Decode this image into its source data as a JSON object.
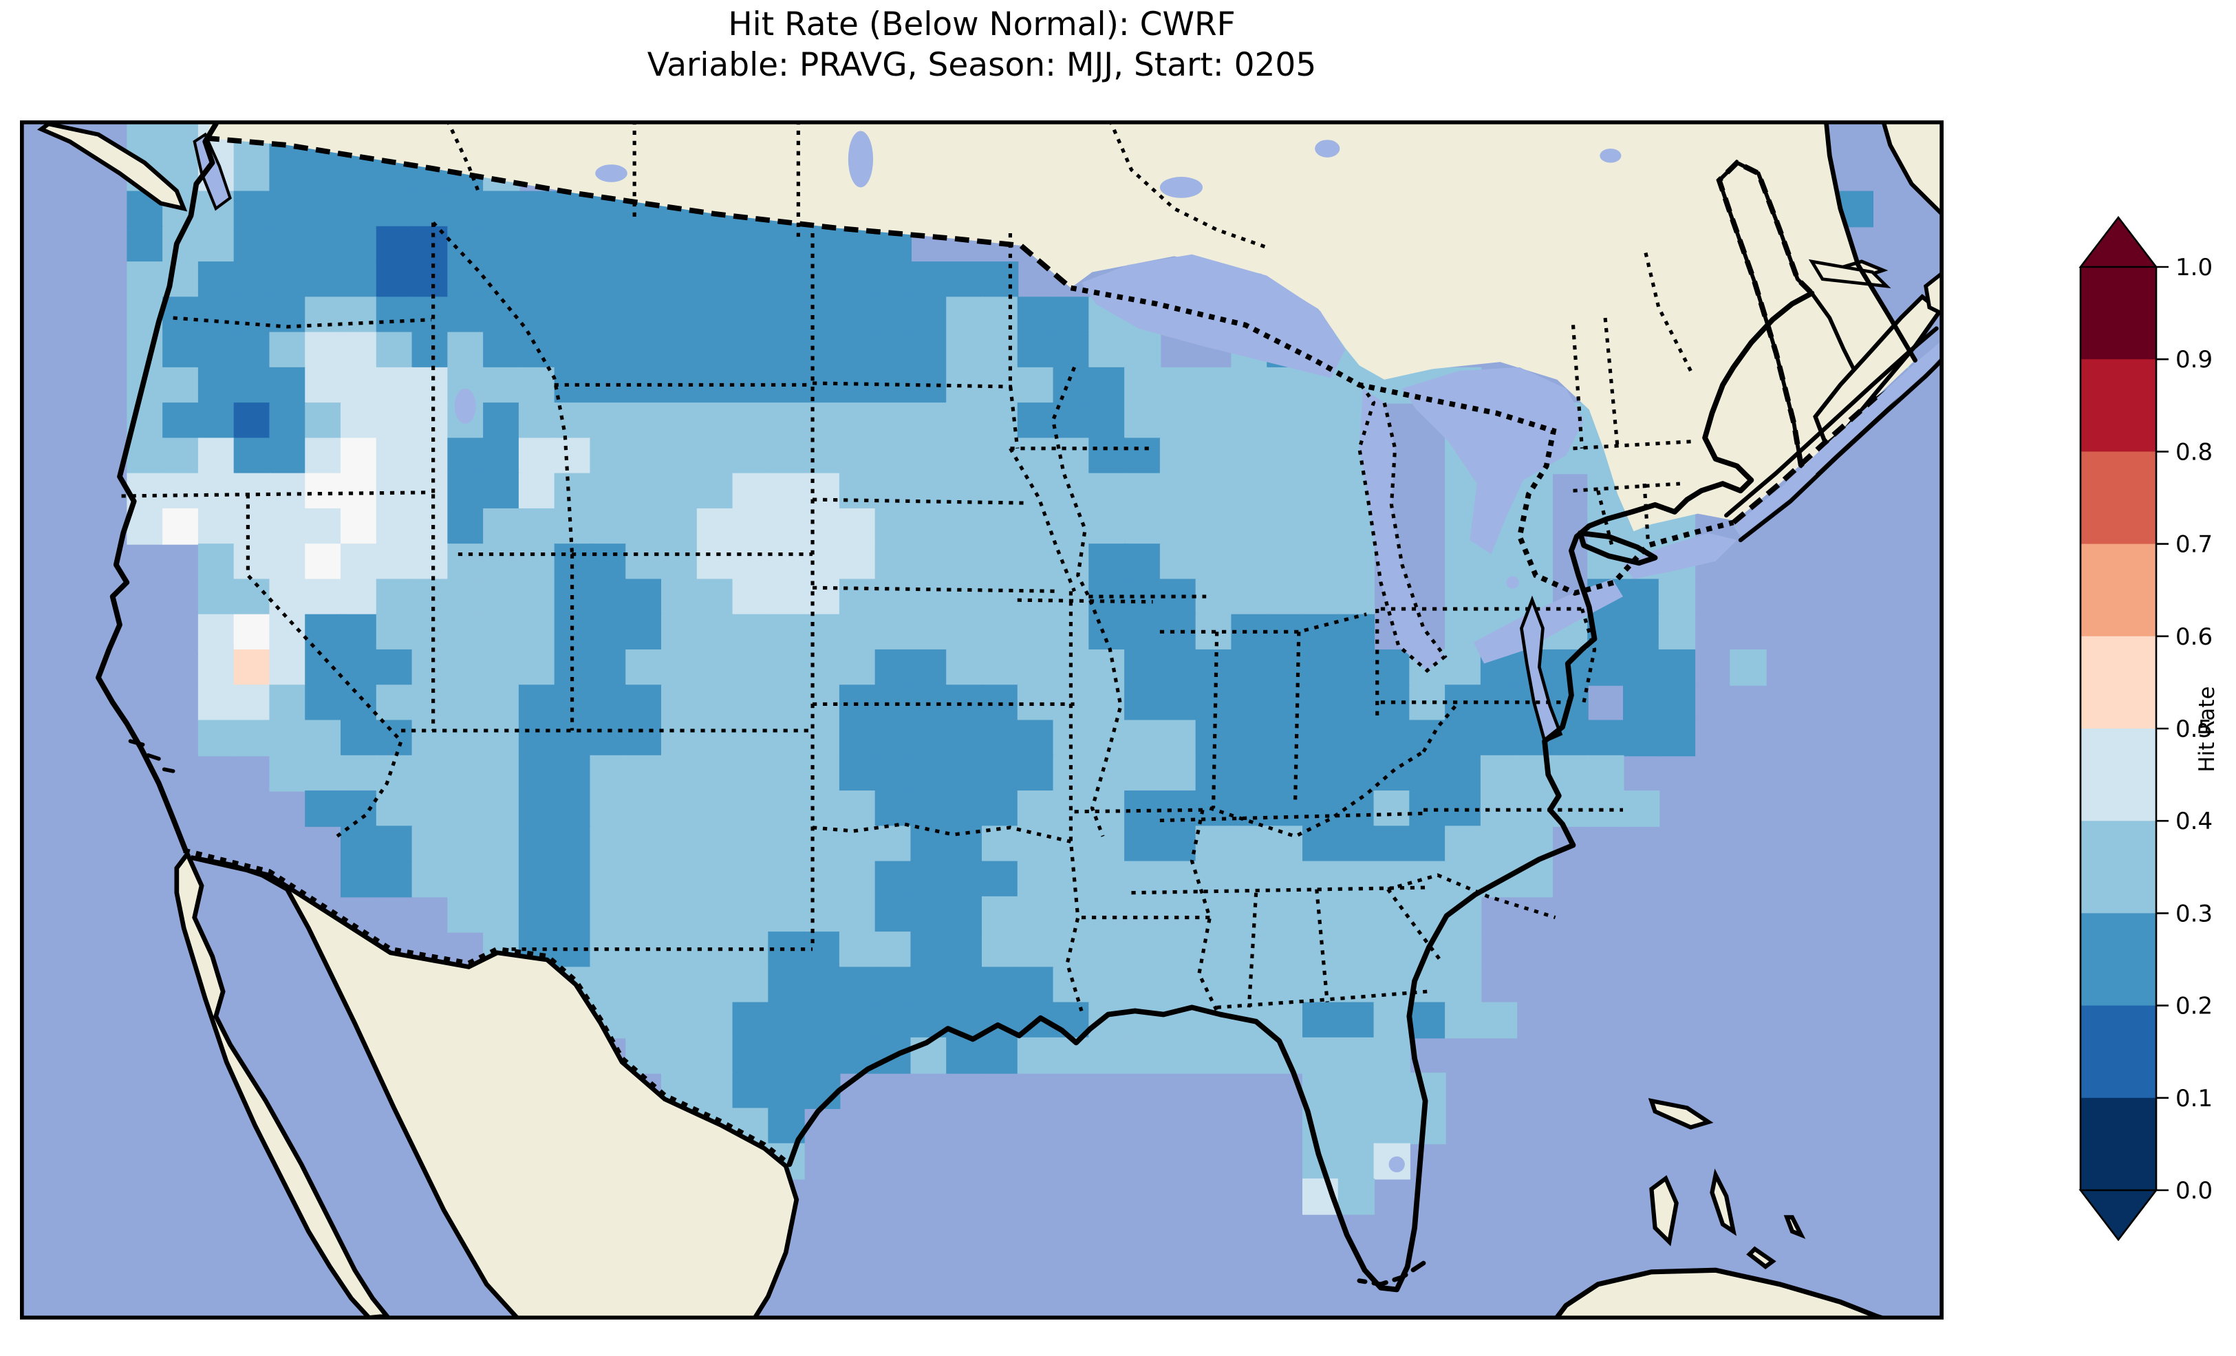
{
  "figure": {
    "title_line1": "Hit Rate (Below Normal): CWRF",
    "title_line2": "Variable: PRAVG, Season: MJJ, Start: 0205"
  },
  "colorbar": {
    "label": "Hit Rate",
    "tick_labels_top_to_bottom": [
      "1.0",
      "0.9",
      "0.8",
      "0.7",
      "0.6",
      "0.5",
      "0.4",
      "0.3",
      "0.2",
      "0.1",
      "0.0"
    ],
    "segment_colors_low_to_high": [
      "#053061",
      "#2166ac",
      "#4393c3",
      "#92c5de",
      "#d1e5f0",
      "#fddbc7",
      "#f4a582",
      "#d6604d",
      "#b2182b",
      "#67001f"
    ],
    "under_arrow_color": "#053061",
    "over_arrow_color": "#67001f"
  },
  "map_style": {
    "ocean": "#93a8da",
    "lake": "#9fb4e4",
    "foreign_land": "#f0eedb",
    "coastline": "#000000"
  },
  "chart_data": {
    "type": "heatmap",
    "title": "Hit Rate (Below Normal): CWRF",
    "subtitle": "Variable: PRAVG, Season: MJJ, Start: 0205",
    "metric": "Hit Rate (Below Normal)",
    "model": "CWRF",
    "variable": "PRAVG",
    "season": "MJJ",
    "start": "0205",
    "region": "Continental United States",
    "value_bins": [
      0.0,
      0.1,
      0.2,
      0.3,
      0.4,
      0.5,
      0.6,
      0.7,
      0.8,
      0.9,
      1.0
    ],
    "bin_colors_low_to_high": [
      "#053061",
      "#2166ac",
      "#4393c3",
      "#92c5de",
      "#d1e5f0",
      "#fddbc7",
      "#f4a582",
      "#d6604d",
      "#b2182b",
      "#67001f"
    ],
    "colorbar_label": "Hit Rate",
    "grid_cell_key": {
      "1": "0.1-0.2 (#2166ac)",
      "2": "0.2-0.3 (#4393c3)",
      "3": "0.3-0.4 (#92c5de)",
      "4": "0.4-0.5 (#d1e5f0)",
      "5": "0.5-0.6 (#fddbc7)",
      "6": "~0.5 (#f7f7f7)",
      ".": "no data"
    },
    "grid_cols": 54,
    "grid_rows_n": 34,
    "grid_rows": [
      "...334322222........................................",
      "...33432222223..................................2.....",
      "...23322222222222222222..........................222....",
      "...2332222112222222222222....................22223...",
      "...3322222112222222222222222..................2223....",
      "...32222332222222222222222332233...............22223....",
      "...32223443232222222222222332233..32333......33222233....",
      "...33222444433322222222222333223333333333....33333320.....",
      "...32212344432333333333333332223333333..33333333......",
      "...33422464422443333333333333322333333..33333233......",
      "...44444664422433333444333333333333333..333.333.......",
      "...46444464423333334444433333333333333..333.333.......",
      ".....344644433322334444433333322333333..333.333.......",
      ".....334443333322233444333333322233333..333.223.......",
      ".....464223333322233333333333322232222..3333223.......",
      ".....454222333322333333322333332222222233222222 3......",
      ".....443223333222233333222223332222222232222 22....",
      ".....333322333222233333222222333322222222222222....",
      ".......33333332233333332222223333222222223333.....",
      "........22333322333333332222333222222232233333.....",
      ".........2233322333333333223333223332222333.......",
      ".........2233322333333332222333333333333333.......",
      "..........,.33223333333322233333333333333.........",
      "..........,..3223333322332233333333333333.........",
      "..............,33333322222222333333333333.........",
      "..............,.33332222222222333333223233........",
      "...............,.3332222232233333333333...........",
      "................,.33222.............3333..........",
      ".................,.332..............3333..........",
      "..................,.33..............334...........",
      "....................................43............",
      "......................................................",
      "......................................................",
      "......................................................"
    ]
  }
}
